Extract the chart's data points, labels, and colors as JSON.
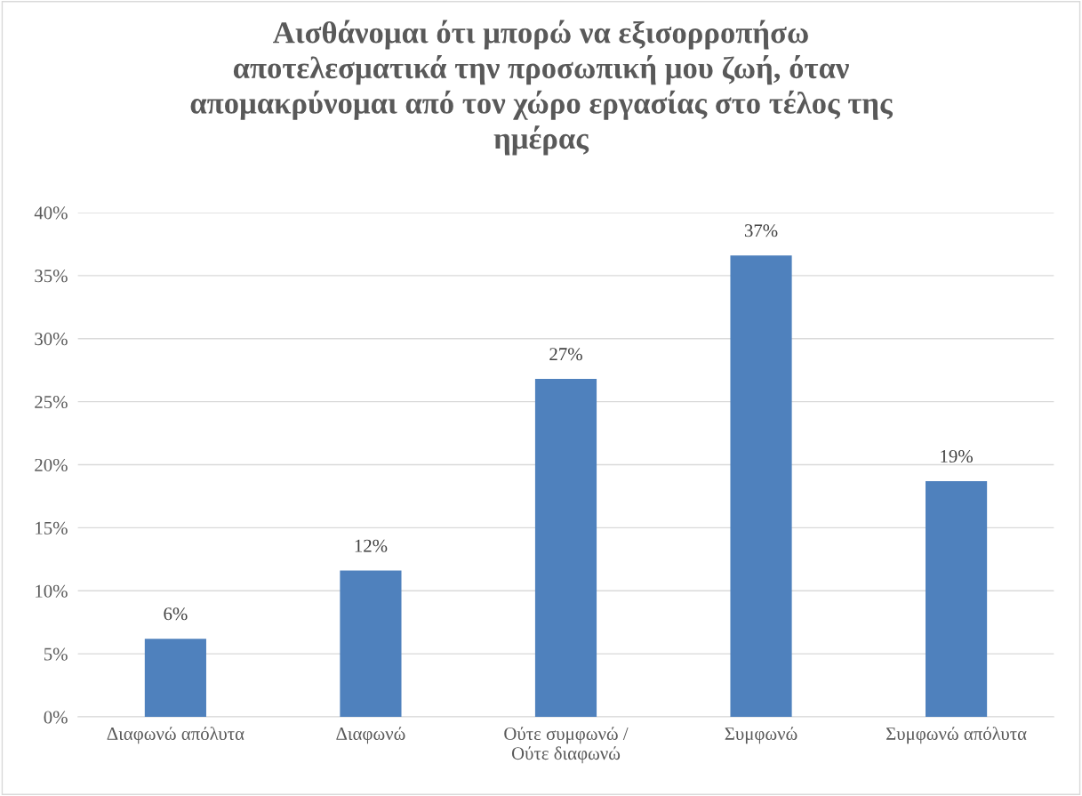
{
  "chart_data": {
    "type": "bar",
    "title": "Αισθάνομαι ότι μπορώ να εξισορροπήσω\nαποτελεσματικά την προσωπική μου ζωή, όταν\nαπομακρύνομαι από τον χώρο εργασίας στο τέλος της\nημέρας",
    "categories": [
      "Διαφωνώ απόλυτα",
      "Διαφωνώ",
      "Ούτε συμφωνώ /\nΟύτε διαφωνώ",
      "Συμφωνώ",
      "Συμφωνώ απόλυτα"
    ],
    "values": [
      6.2,
      11.6,
      26.8,
      36.6,
      18.7
    ],
    "value_labels": [
      "6%",
      "12%",
      "27%",
      "37%",
      "19%"
    ],
    "color": "#4f81bd",
    "ylim": [
      0,
      40
    ],
    "yticks": [
      {
        "value": 0,
        "label": "0%"
      },
      {
        "value": 5,
        "label": "5%"
      },
      {
        "value": 10,
        "label": "10%"
      },
      {
        "value": 15,
        "label": "15%"
      },
      {
        "value": 20,
        "label": "20%"
      },
      {
        "value": 25,
        "label": "25%"
      },
      {
        "value": 30,
        "label": "30%"
      },
      {
        "value": 35,
        "label": "35%"
      },
      {
        "value": 40,
        "label": "40%"
      }
    ],
    "grid": "y",
    "legend": false
  }
}
